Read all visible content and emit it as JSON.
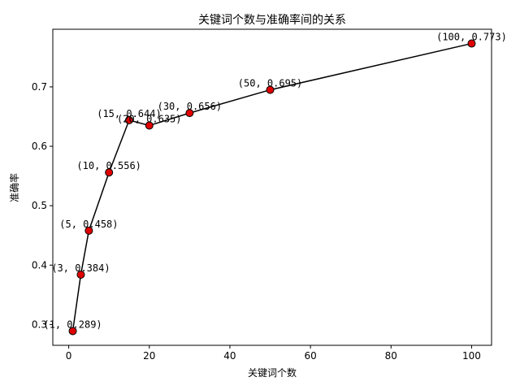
{
  "chart_data": {
    "type": "line",
    "title": "关键词个数与准确率间的关系",
    "xlabel": "关键词个数",
    "ylabel": "准确率",
    "xlim": [
      -3.95,
      104.95
    ],
    "ylim": [
      0.265,
      0.797
    ],
    "xticks": [
      0,
      20,
      40,
      60,
      80,
      100
    ],
    "yticks": [
      0.3,
      0.4,
      0.5,
      0.6,
      0.7
    ],
    "grid": false,
    "line_color": "#000000",
    "marker_color": "#e00000",
    "marker_edge_color": "#000000",
    "series": [
      {
        "x": [
          1,
          3,
          5,
          10,
          15,
          20,
          30,
          50,
          100
        ],
        "y": [
          0.289,
          0.384,
          0.458,
          0.556,
          0.644,
          0.635,
          0.656,
          0.695,
          0.773
        ]
      }
    ],
    "annotations": [
      "(1, 0.289)",
      "(3, 0.384)",
      "(5, 0.458)",
      "(10, 0.556)",
      "(15, 0.644)",
      "(20, 0.635)",
      "(30, 0.656)",
      "(50, 0.695)",
      "(100, 0.773)"
    ]
  }
}
